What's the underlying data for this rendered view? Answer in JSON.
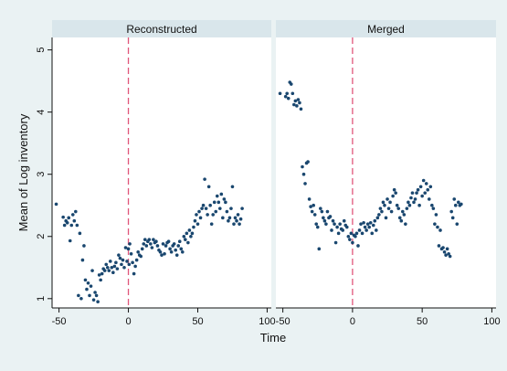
{
  "chart_data": {
    "type": "scatter",
    "xlabel": "Time",
    "ylabel": "Mean of Log inventory",
    "xlim": [
      -55,
      103
    ],
    "ylim": [
      0.85,
      5.2
    ],
    "x_ticks": [
      -50,
      0,
      50,
      100
    ],
    "y_ticks": [
      1,
      2,
      3,
      4,
      5
    ],
    "vline_x": 0,
    "colors": {
      "marker": "#1a476f",
      "vline": "#e0557a",
      "panel_bg": "#ffffff",
      "strip_bg": "#d9e6eb",
      "outer_bg": "#eaf2f3",
      "axis": "#111111"
    },
    "panels": [
      {
        "title": "Reconstructed",
        "points": [
          [
            -52,
            2.52
          ],
          [
            -47,
            2.31
          ],
          [
            -46,
            2.18
          ],
          [
            -45,
            2.25
          ],
          [
            -44,
            2.22
          ],
          [
            -43,
            2.3
          ],
          [
            -42,
            1.93
          ],
          [
            -41,
            2.18
          ],
          [
            -40,
            2.35
          ],
          [
            -39,
            2.25
          ],
          [
            -38,
            2.4
          ],
          [
            -37,
            2.18
          ],
          [
            -36,
            1.05
          ],
          [
            -35,
            2.05
          ],
          [
            -34,
            1.0
          ],
          [
            -33,
            1.62
          ],
          [
            -32,
            1.85
          ],
          [
            -31,
            1.3
          ],
          [
            -30,
            1.15
          ],
          [
            -29,
            1.25
          ],
          [
            -28,
            1.05
          ],
          [
            -27,
            1.2
          ],
          [
            -26,
            1.45
          ],
          [
            -25,
            0.98
          ],
          [
            -24,
            1.1
          ],
          [
            -23,
            1.05
          ],
          [
            -22,
            0.95
          ],
          [
            -21,
            1.38
          ],
          [
            -20,
            1.3
          ],
          [
            -19,
            1.4
          ],
          [
            -18,
            1.48
          ],
          [
            -17,
            1.45
          ],
          [
            -16,
            1.55
          ],
          [
            -15,
            1.5
          ],
          [
            -14,
            1.45
          ],
          [
            -13,
            1.6
          ],
          [
            -12,
            1.5
          ],
          [
            -11,
            1.42
          ],
          [
            -10,
            1.52
          ],
          [
            -9,
            1.58
          ],
          [
            -8,
            1.48
          ],
          [
            -7,
            1.7
          ],
          [
            -6,
            1.65
          ],
          [
            -5,
            1.55
          ],
          [
            -4,
            1.62
          ],
          [
            -3,
            1.5
          ],
          [
            -2,
            1.82
          ],
          [
            -1,
            1.6
          ],
          [
            0,
            1.8
          ],
          [
            0.5,
            1.55
          ],
          [
            1,
            1.88
          ],
          [
            2,
            1.72
          ],
          [
            3,
            1.58
          ],
          [
            4,
            1.4
          ],
          [
            5,
            1.52
          ],
          [
            6,
            1.62
          ],
          [
            7,
            1.75
          ],
          [
            8,
            1.7
          ],
          [
            9,
            1.68
          ],
          [
            10,
            1.8
          ],
          [
            11,
            1.88
          ],
          [
            12,
            1.95
          ],
          [
            13,
            1.85
          ],
          [
            14,
            1.92
          ],
          [
            15,
            1.95
          ],
          [
            16,
            1.88
          ],
          [
            17,
            1.82
          ],
          [
            18,
            1.95
          ],
          [
            19,
            1.9
          ],
          [
            20,
            1.92
          ],
          [
            21,
            1.85
          ],
          [
            22,
            1.78
          ],
          [
            23,
            1.75
          ],
          [
            24,
            1.7
          ],
          [
            25,
            1.88
          ],
          [
            26,
            1.72
          ],
          [
            27,
            1.85
          ],
          [
            28,
            1.9
          ],
          [
            29,
            1.92
          ],
          [
            30,
            1.8
          ],
          [
            31,
            1.75
          ],
          [
            32,
            1.85
          ],
          [
            33,
            1.88
          ],
          [
            34,
            1.78
          ],
          [
            35,
            1.7
          ],
          [
            36,
            1.85
          ],
          [
            37,
            1.92
          ],
          [
            38,
            1.8
          ],
          [
            39,
            1.75
          ],
          [
            40,
            2.0
          ],
          [
            41,
            1.95
          ],
          [
            42,
            2.05
          ],
          [
            43,
            1.9
          ],
          [
            44,
            2.1
          ],
          [
            45,
            2.0
          ],
          [
            46,
            2.05
          ],
          [
            47,
            2.15
          ],
          [
            48,
            2.25
          ],
          [
            49,
            2.35
          ],
          [
            50,
            2.2
          ],
          [
            51,
            2.4
          ],
          [
            52,
            2.3
          ],
          [
            53,
            2.45
          ],
          [
            54,
            2.5
          ],
          [
            55,
            2.92
          ],
          [
            56,
            2.45
          ],
          [
            57,
            2.35
          ],
          [
            58,
            2.8
          ],
          [
            59,
            2.5
          ],
          [
            60,
            2.2
          ],
          [
            61,
            2.35
          ],
          [
            62,
            2.55
          ],
          [
            63,
            2.4
          ],
          [
            64,
            2.65
          ],
          [
            65,
            2.55
          ],
          [
            66,
            2.45
          ],
          [
            67,
            2.68
          ],
          [
            68,
            2.3
          ],
          [
            69,
            2.6
          ],
          [
            70,
            2.55
          ],
          [
            71,
            2.4
          ],
          [
            72,
            2.25
          ],
          [
            73,
            2.3
          ],
          [
            74,
            2.45
          ],
          [
            75,
            2.8
          ],
          [
            76,
            2.2
          ],
          [
            77,
            2.3
          ],
          [
            78,
            2.25
          ],
          [
            79,
            2.35
          ],
          [
            80,
            2.2
          ],
          [
            81,
            2.28
          ],
          [
            82,
            2.45
          ]
        ]
      },
      {
        "title": "Merged",
        "points": [
          [
            -52,
            4.3
          ],
          [
            -48,
            4.25
          ],
          [
            -47,
            4.3
          ],
          [
            -46,
            4.22
          ],
          [
            -45,
            4.48
          ],
          [
            -44,
            4.45
          ],
          [
            -43,
            4.3
          ],
          [
            -42,
            4.12
          ],
          [
            -41,
            4.18
          ],
          [
            -40,
            4.1
          ],
          [
            -39,
            4.2
          ],
          [
            -38,
            4.15
          ],
          [
            -37,
            4.05
          ],
          [
            -36,
            3.12
          ],
          [
            -35,
            3.0
          ],
          [
            -34,
            2.85
          ],
          [
            -33,
            3.18
          ],
          [
            -32,
            3.2
          ],
          [
            -31,
            2.6
          ],
          [
            -30,
            2.48
          ],
          [
            -29,
            2.4
          ],
          [
            -28,
            2.5
          ],
          [
            -27,
            2.35
          ],
          [
            -26,
            2.2
          ],
          [
            -25,
            2.15
          ],
          [
            -24,
            1.8
          ],
          [
            -23,
            2.45
          ],
          [
            -22,
            2.4
          ],
          [
            -21,
            2.3
          ],
          [
            -20,
            2.25
          ],
          [
            -19,
            2.2
          ],
          [
            -18,
            2.4
          ],
          [
            -17,
            2.3
          ],
          [
            -16,
            2.32
          ],
          [
            -15,
            2.1
          ],
          [
            -14,
            2.25
          ],
          [
            -13,
            2.2
          ],
          [
            -12,
            1.9
          ],
          [
            -11,
            2.15
          ],
          [
            -10,
            2.05
          ],
          [
            -9,
            2.2
          ],
          [
            -8,
            2.12
          ],
          [
            -7,
            2.1
          ],
          [
            -6,
            2.25
          ],
          [
            -5,
            2.18
          ],
          [
            -4,
            2.15
          ],
          [
            -3,
            2.0
          ],
          [
            -2,
            1.95
          ],
          [
            -1,
            2.05
          ],
          [
            0,
            1.9
          ],
          [
            1,
            2.02
          ],
          [
            2,
            2.0
          ],
          [
            3,
            2.05
          ],
          [
            4,
            1.85
          ],
          [
            5,
            2.1
          ],
          [
            6,
            2.2
          ],
          [
            7,
            2.05
          ],
          [
            8,
            2.22
          ],
          [
            9,
            2.15
          ],
          [
            10,
            2.1
          ],
          [
            11,
            2.2
          ],
          [
            12,
            2.15
          ],
          [
            13,
            2.22
          ],
          [
            14,
            2.05
          ],
          [
            15,
            2.18
          ],
          [
            16,
            2.25
          ],
          [
            17,
            2.1
          ],
          [
            18,
            2.3
          ],
          [
            19,
            2.35
          ],
          [
            20,
            2.45
          ],
          [
            21,
            2.4
          ],
          [
            22,
            2.55
          ],
          [
            23,
            2.5
          ],
          [
            24,
            2.3
          ],
          [
            25,
            2.6
          ],
          [
            26,
            2.45
          ],
          [
            27,
            2.55
          ],
          [
            28,
            2.4
          ],
          [
            29,
            2.65
          ],
          [
            30,
            2.75
          ],
          [
            31,
            2.7
          ],
          [
            32,
            2.5
          ],
          [
            33,
            2.45
          ],
          [
            34,
            2.3
          ],
          [
            35,
            2.25
          ],
          [
            36,
            2.4
          ],
          [
            37,
            2.35
          ],
          [
            38,
            2.2
          ],
          [
            39,
            2.45
          ],
          [
            40,
            2.55
          ],
          [
            41,
            2.5
          ],
          [
            42,
            2.62
          ],
          [
            43,
            2.7
          ],
          [
            44,
            2.55
          ],
          [
            45,
            2.6
          ],
          [
            46,
            2.7
          ],
          [
            47,
            2.75
          ],
          [
            48,
            2.5
          ],
          [
            49,
            2.8
          ],
          [
            50,
            2.65
          ],
          [
            51,
            2.9
          ],
          [
            52,
            2.7
          ],
          [
            53,
            2.85
          ],
          [
            54,
            2.75
          ],
          [
            55,
            2.6
          ],
          [
            56,
            2.8
          ],
          [
            57,
            2.5
          ],
          [
            58,
            2.45
          ],
          [
            59,
            2.2
          ],
          [
            60,
            2.35
          ],
          [
            61,
            2.15
          ],
          [
            62,
            1.85
          ],
          [
            63,
            2.1
          ],
          [
            64,
            1.8
          ],
          [
            65,
            1.82
          ],
          [
            66,
            1.75
          ],
          [
            67,
            1.7
          ],
          [
            68,
            1.8
          ],
          [
            69,
            1.72
          ],
          [
            70,
            1.68
          ],
          [
            71,
            2.4
          ],
          [
            72,
            2.3
          ],
          [
            73,
            2.6
          ],
          [
            74,
            2.5
          ],
          [
            75,
            2.2
          ],
          [
            76,
            2.55
          ],
          [
            77,
            2.5
          ],
          [
            78,
            2.52
          ]
        ]
      }
    ]
  }
}
